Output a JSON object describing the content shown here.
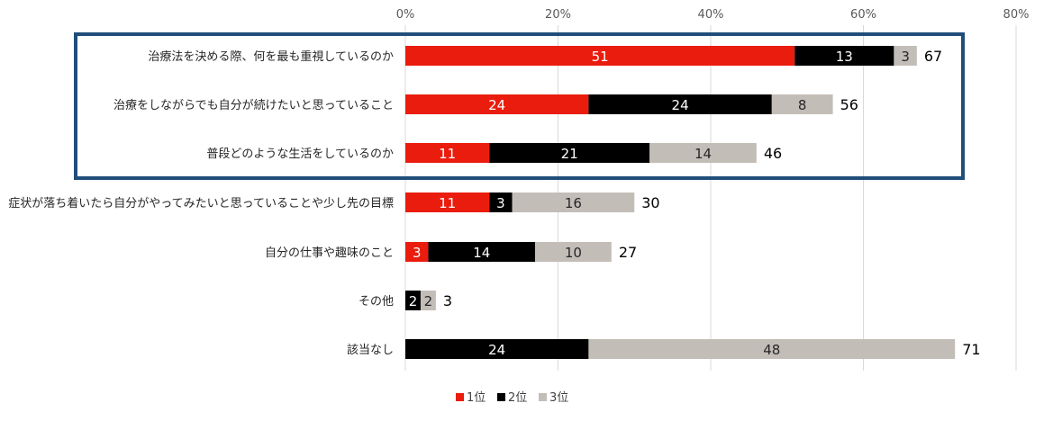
{
  "chart_data": {
    "type": "bar",
    "orientation": "horizontal",
    "stacked": true,
    "x_axis": {
      "min": 0,
      "max": 80,
      "step": 20,
      "tick_labels": [
        "0%",
        "20%",
        "40%",
        "60%",
        "80%"
      ],
      "grid": true
    },
    "categories": [
      "治療法を決める際、何を最も重視しているのか",
      "治療をしながらでも自分が続けたいと思っていること",
      "普段どのような生活をしているのか",
      "症状が落ち着いたら自分がやってみたいと思っていることや少し先の目標",
      "自分の仕事や趣味のこと",
      "その他",
      "該当なし"
    ],
    "series": [
      {
        "name": "1位",
        "color": "#ea1c0d",
        "text_color": "#ffffff",
        "values": [
          51,
          24,
          11,
          11,
          3,
          0,
          0
        ]
      },
      {
        "name": "2位",
        "color": "#000000",
        "text_color": "#ffffff",
        "values": [
          13,
          24,
          21,
          3,
          14,
          2,
          24
        ]
      },
      {
        "name": "3位",
        "color": "#c3bdb8",
        "text_color": "#262626",
        "values": [
          3,
          8,
          14,
          16,
          10,
          2,
          48
        ]
      }
    ],
    "totals": [
      67,
      56,
      46,
      30,
      27,
      3,
      71
    ],
    "legend": {
      "position": "bottom",
      "items": [
        "1位",
        "2位",
        "3位"
      ]
    },
    "highlight": {
      "categories": [
        0,
        1,
        2
      ],
      "color": "#1f4e79"
    }
  }
}
